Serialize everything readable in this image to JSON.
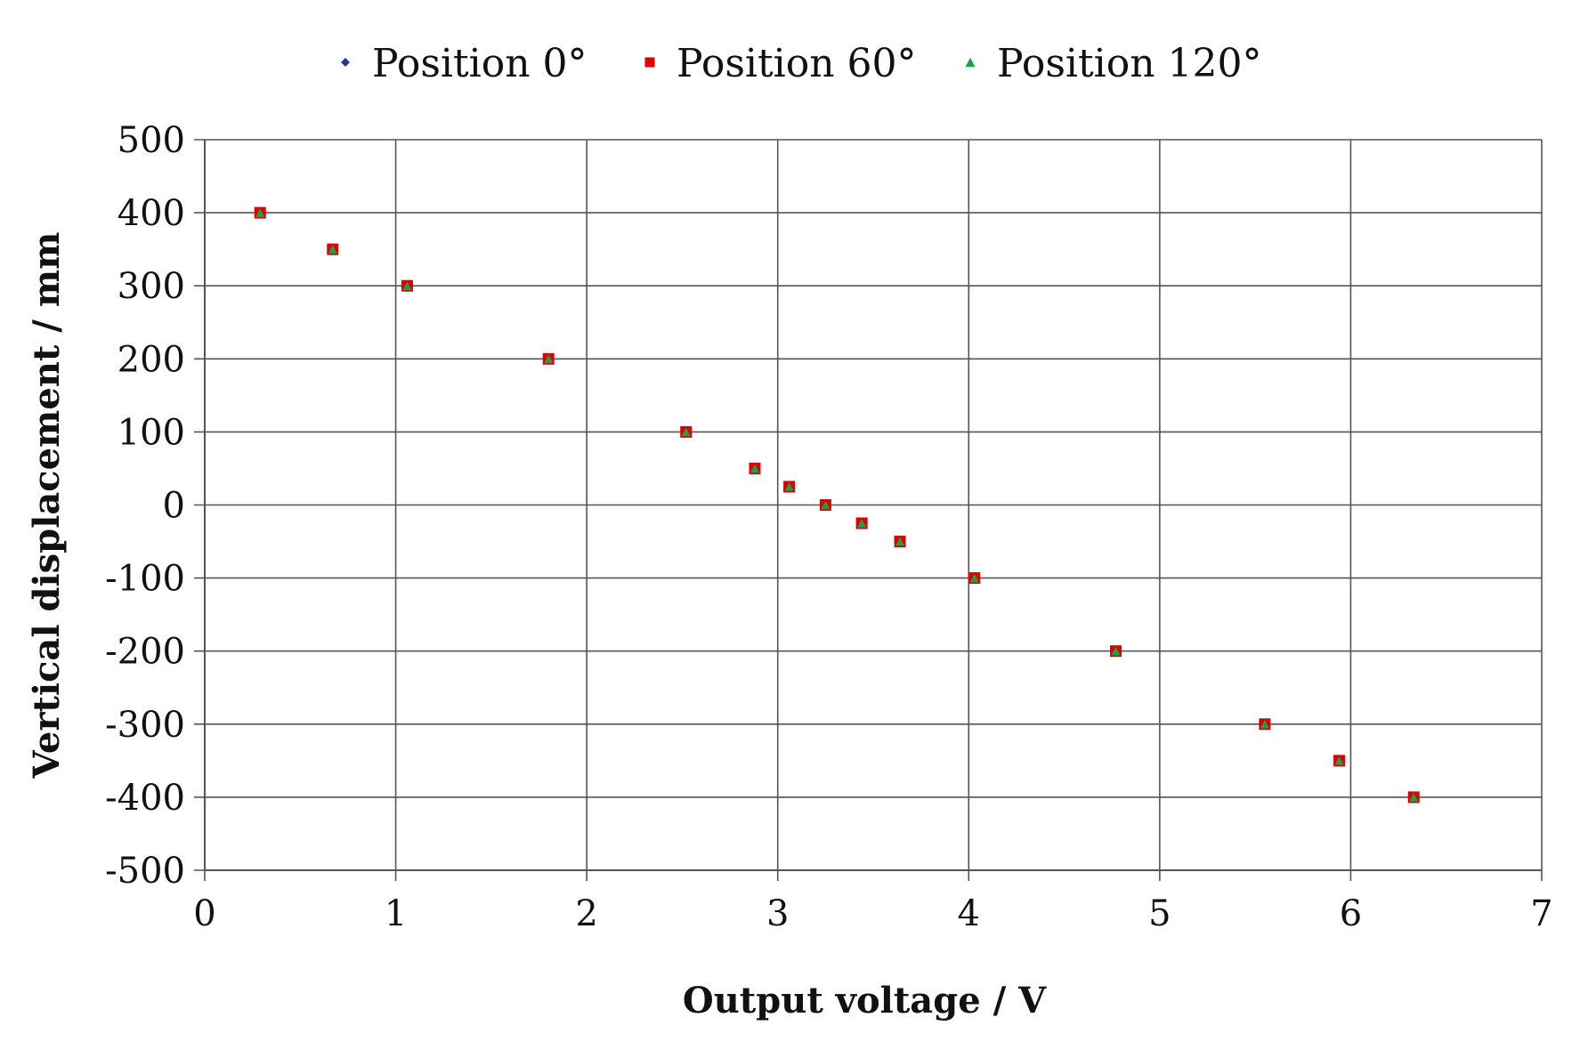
{
  "chart_data": {
    "type": "scatter",
    "title": "",
    "xlabel": "Output voltage / V",
    "ylabel": "Vertical displacement / mm",
    "xlim": [
      0,
      7
    ],
    "ylim": [
      -500,
      500
    ],
    "x_ticks": [
      0,
      1,
      2,
      3,
      4,
      5,
      6,
      7
    ],
    "y_ticks": [
      500,
      400,
      300,
      200,
      100,
      0,
      -100,
      -200,
      -300,
      -400,
      -500
    ],
    "x_tick_labels": [
      "0",
      "1",
      "2",
      "3",
      "4",
      "5",
      "6",
      "7"
    ],
    "y_tick_labels": [
      "500",
      "400",
      "300",
      "200",
      "100",
      "0",
      "-100",
      "-200",
      "-300",
      "-400",
      "-500"
    ],
    "grid": true,
    "legend_position": "top",
    "series": [
      {
        "name": "Position 0°",
        "marker": "diamond",
        "color": "#1f3a93",
        "x": [
          0.29,
          0.67,
          1.06,
          1.8,
          2.52,
          2.88,
          3.06,
          3.25,
          3.44,
          3.64,
          4.03,
          4.77,
          5.55,
          5.94,
          6.33
        ],
        "y": [
          400,
          350,
          300,
          200,
          100,
          50,
          25,
          0,
          -25,
          -50,
          -100,
          -200,
          -300,
          -350,
          -400
        ]
      },
      {
        "name": "Position 60°",
        "marker": "square",
        "color": "#e00000",
        "x": [
          0.29,
          0.67,
          1.06,
          1.8,
          2.52,
          2.88,
          3.06,
          3.25,
          3.44,
          3.64,
          4.03,
          4.77,
          5.55,
          5.94,
          6.33
        ],
        "y": [
          400,
          350,
          300,
          200,
          100,
          50,
          25,
          0,
          -25,
          -50,
          -100,
          -200,
          -300,
          -350,
          -400
        ]
      },
      {
        "name": "Position 120°",
        "marker": "triangle",
        "color": "#16a34a",
        "x": [
          0.29,
          0.67,
          1.06,
          1.8,
          2.52,
          2.88,
          3.06,
          3.25,
          3.44,
          3.64,
          4.03,
          4.77,
          5.55,
          5.94,
          6.33
        ],
        "y": [
          400,
          350,
          300,
          200,
          100,
          50,
          25,
          0,
          -25,
          -50,
          -100,
          -200,
          -300,
          -350,
          -400
        ]
      }
    ]
  }
}
